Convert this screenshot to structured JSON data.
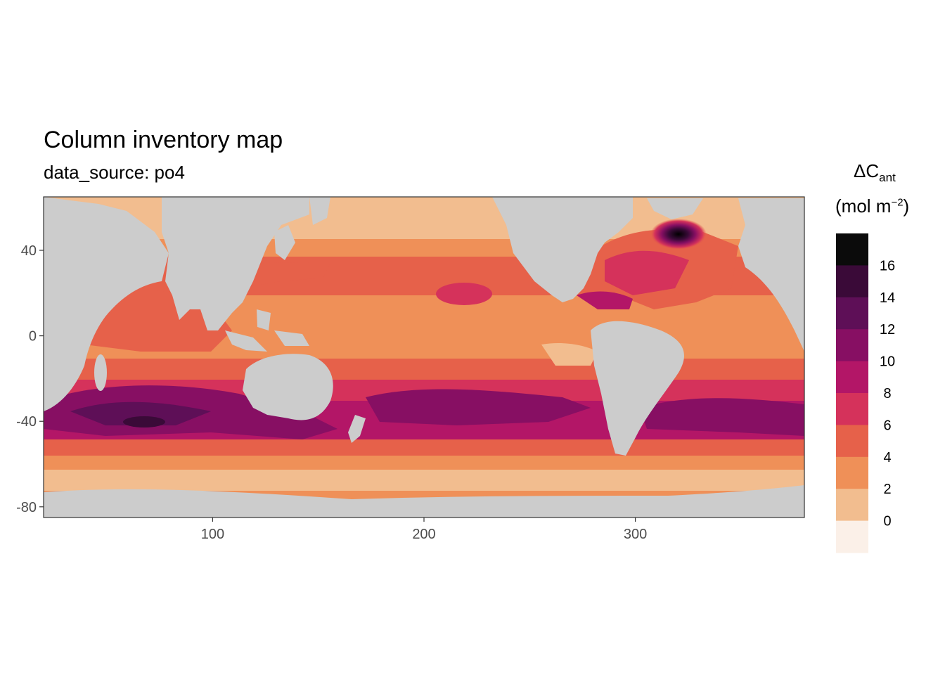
{
  "title": "Column inventory map",
  "subtitle": "data_source: po4",
  "legend": {
    "title_main": "ΔC",
    "title_sub": "ant",
    "unit_prefix": "(mol m",
    "unit_sup": "−2",
    "unit_suffix": ")",
    "breaks": [
      "16",
      "14",
      "12",
      "10",
      "8",
      "6",
      "4",
      "2",
      "0"
    ],
    "colors": [
      "#0b0b0b",
      "#3a0a38",
      "#5e0f57",
      "#870f63",
      "#b31667",
      "#d5325b",
      "#e6614a",
      "#ef9058",
      "#f2bd8f",
      "#fbf0e8"
    ]
  },
  "chart_data": {
    "type": "heatmap",
    "title": "Column inventory map",
    "subtitle": "data_source: po4",
    "xlabel": "",
    "ylabel": "",
    "x_ticks": [
      "100",
      "200",
      "300"
    ],
    "y_ticks": [
      "40",
      "0",
      "-40",
      "-80"
    ],
    "xlim": [
      20,
      380
    ],
    "ylim": [
      -85,
      65
    ],
    "land_color": "#cccccc",
    "legend_placement": "right",
    "legend_title": "ΔCant (mol m−2)",
    "color_breaks": [
      0,
      2,
      4,
      6,
      8,
      10,
      12,
      14,
      16
    ],
    "bands": [
      {
        "lat_range": [
          50,
          65
        ],
        "level": "0-2"
      },
      {
        "lat_range": [
          30,
          50
        ],
        "level": "2-4"
      },
      {
        "lat_range": [
          15,
          30
        ],
        "level": "4-6"
      },
      {
        "lat_range": [
          -20,
          15
        ],
        "level": "2-4"
      },
      {
        "lat_range": [
          -35,
          -20
        ],
        "level": "6-8"
      },
      {
        "lat_range": [
          -50,
          -35
        ],
        "level": "8-12"
      },
      {
        "lat_range": [
          -60,
          -50
        ],
        "level": "4-6"
      },
      {
        "lat_range": [
          -72,
          -60
        ],
        "level": "0-4"
      }
    ],
    "max_region": {
      "lon": 318,
      "lat": 47,
      "level": ">16"
    }
  }
}
